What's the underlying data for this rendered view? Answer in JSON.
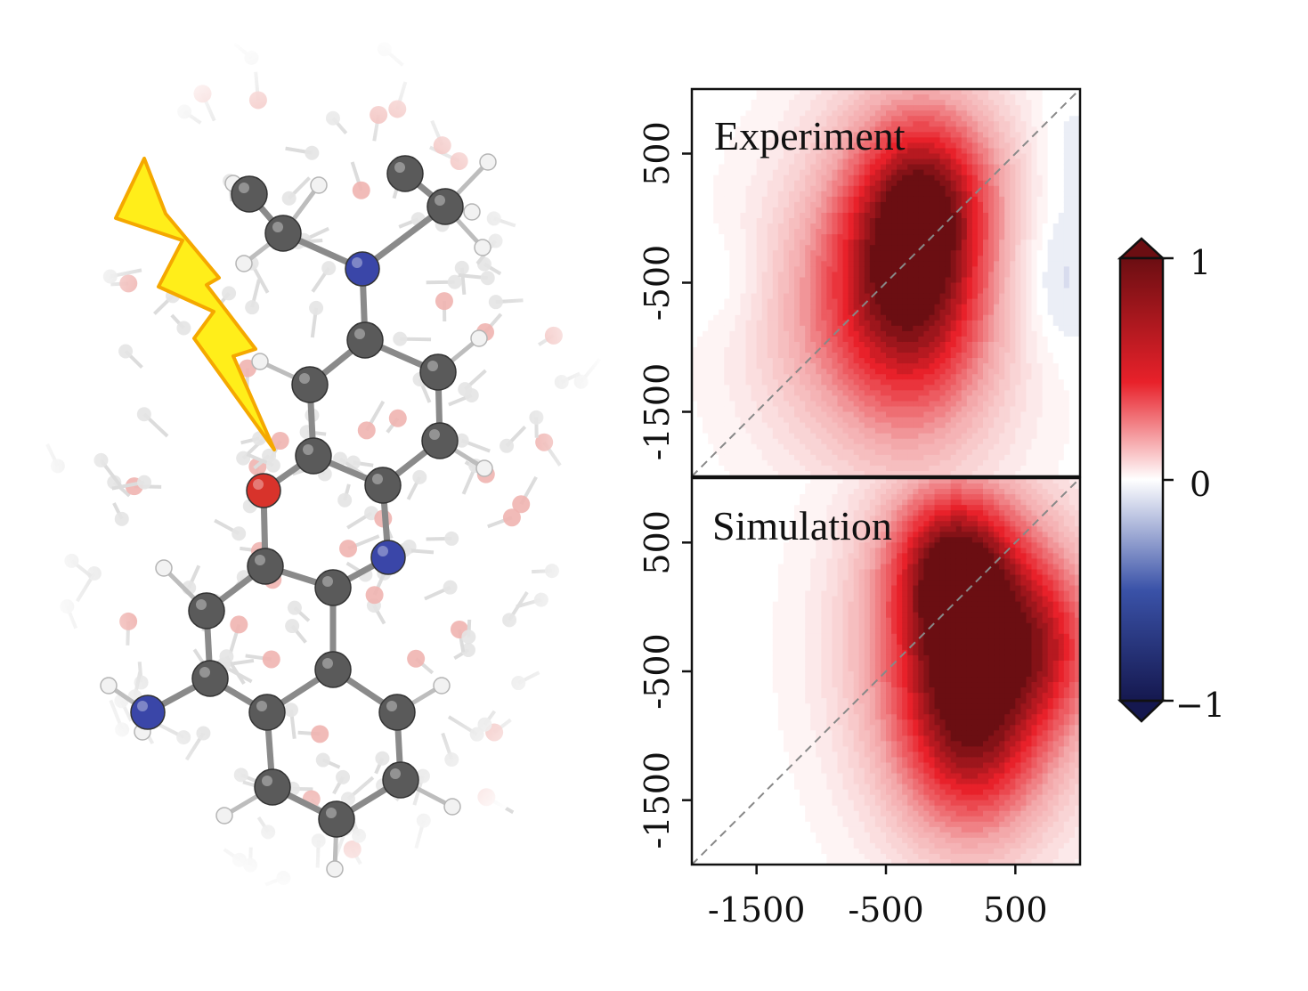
{
  "figure": {
    "molecule": {
      "depiction": "molecular ball-and-stick model in solvent box",
      "icon": "lightning-bolt-icon",
      "colors": {
        "carbon": "#5a5a5a",
        "nitrogen": "#3a46a8",
        "oxygen": "#d8332b",
        "hydrogen": "#f2f2f2",
        "bolt_fill": "#ffee1a",
        "bolt_stroke": "#f5a800"
      }
    },
    "colorbar": {
      "cmap": "seismic-like (navy-blue-white-red-darkred)",
      "ticks": [
        "1",
        "0",
        "−1"
      ],
      "range": [
        -1,
        1
      ],
      "extend": "both",
      "colors": [
        "#15184f",
        "#3a52a8",
        "#ffffff",
        "#e8212a",
        "#6b0e12"
      ]
    }
  },
  "chart_data": [
    {
      "type": "heatmap",
      "panel_label": "Experiment",
      "x_range": [
        -2000,
        1000
      ],
      "y_range": [
        -2000,
        1000
      ],
      "xticks": [],
      "yticks": [
        {
          "value": 500,
          "label": "500"
        },
        {
          "value": -500,
          "label": "-500"
        },
        {
          "value": -1500,
          "label": "-1500"
        }
      ],
      "diagonal": "dashed gray line y = x",
      "peak": {
        "x": -300,
        "y": -500,
        "value": 1.0
      },
      "components": [
        {
          "x": -300,
          "y": -500,
          "amp": 1.0,
          "sx": 520,
          "sy": 900
        },
        {
          "x": -150,
          "y": 300,
          "amp": 0.35,
          "sx": 420,
          "sy": 500
        },
        {
          "x": -1150,
          "y": -800,
          "amp": 0.18,
          "sx": 450,
          "sy": 700
        },
        {
          "x": -1700,
          "y": -500,
          "amp": -0.08,
          "sx": 250,
          "sy": 300
        },
        {
          "x": 750,
          "y": -450,
          "amp": -0.18,
          "sx": 250,
          "sy": 450
        },
        {
          "x": 850,
          "y": 550,
          "amp": -0.07,
          "sx": 200,
          "sy": 350
        }
      ]
    },
    {
      "type": "heatmap",
      "panel_label": "Simulation",
      "x_range": [
        -2000,
        1000
      ],
      "y_range": [
        -2000,
        1000
      ],
      "xticks": [
        {
          "value": -1500,
          "label": "-1500"
        },
        {
          "value": -500,
          "label": "-500"
        },
        {
          "value": 500,
          "label": "500"
        }
      ],
      "yticks": [
        {
          "value": 500,
          "label": "500"
        },
        {
          "value": -500,
          "label": "-500"
        },
        {
          "value": -1500,
          "label": "-1500"
        }
      ],
      "diagonal": "dashed gray line y = x",
      "peak": {
        "x": 150,
        "y": -300,
        "value": 1.0
      },
      "components": [
        {
          "x": 150,
          "y": -300,
          "amp": 1.0,
          "sx": 560,
          "sy": 780
        },
        {
          "x": 0,
          "y": 450,
          "amp": 0.45,
          "sx": 380,
          "sy": 450
        },
        {
          "x": 150,
          "y": -1300,
          "amp": 0.4,
          "sx": 450,
          "sy": 550
        },
        {
          "x": 850,
          "y": -300,
          "amp": 0.3,
          "sx": 280,
          "sy": 500
        }
      ]
    }
  ]
}
